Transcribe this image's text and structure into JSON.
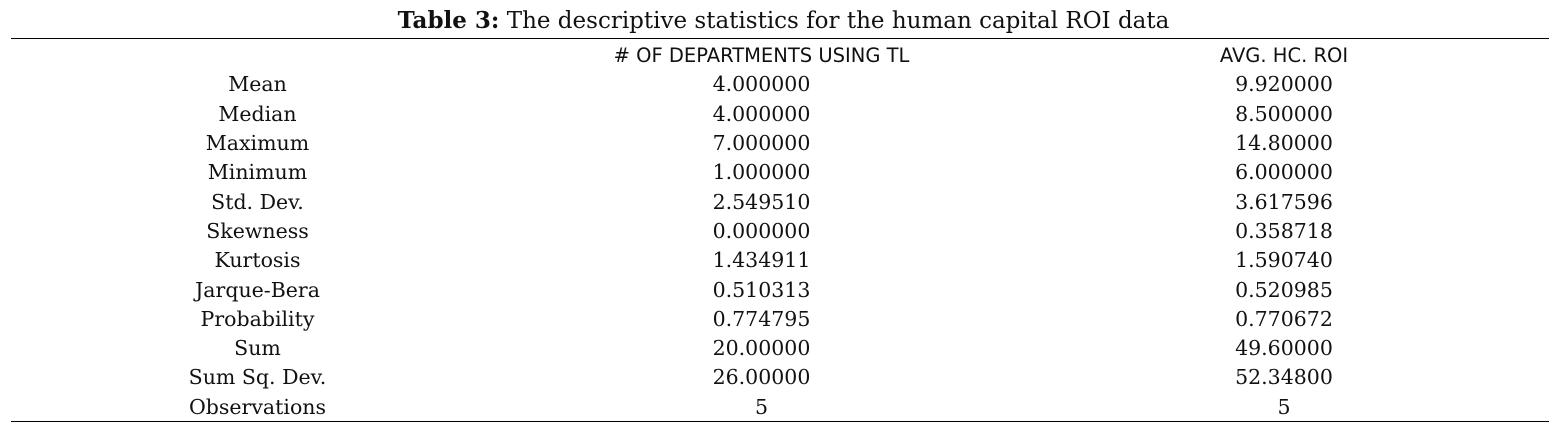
{
  "caption": {
    "label": "Table 3:",
    "text": " The descriptive statistics for the human capital ROI data"
  },
  "table": {
    "headers": [
      "",
      "# OF DEPARTMENTS USING TL",
      "AVG. HC. ROI"
    ],
    "rows": [
      {
        "stat": "Mean",
        "departments": "4.000000",
        "roi": "9.920000"
      },
      {
        "stat": "Median",
        "departments": "4.000000",
        "roi": "8.500000"
      },
      {
        "stat": "Maximum",
        "departments": "7.000000",
        "roi": "14.80000"
      },
      {
        "stat": "Minimum",
        "departments": "1.000000",
        "roi": "6.000000"
      },
      {
        "stat": "Std. Dev.",
        "departments": "2.549510",
        "roi": "3.617596"
      },
      {
        "stat": "Skewness",
        "departments": "0.000000",
        "roi": "0.358718"
      },
      {
        "stat": "Kurtosis",
        "departments": "1.434911",
        "roi": "1.590740"
      },
      {
        "stat": "Jarque-Bera",
        "departments": "0.510313",
        "roi": "0.520985"
      },
      {
        "stat": "Probability",
        "departments": "0.774795",
        "roi": "0.770672"
      },
      {
        "stat": "Sum",
        "departments": "20.00000",
        "roi": "49.60000"
      },
      {
        "stat": "Sum Sq. Dev.",
        "departments": "26.00000",
        "roi": "52.34800"
      },
      {
        "stat": "Observations",
        "departments": "5",
        "roi": "5"
      }
    ]
  }
}
